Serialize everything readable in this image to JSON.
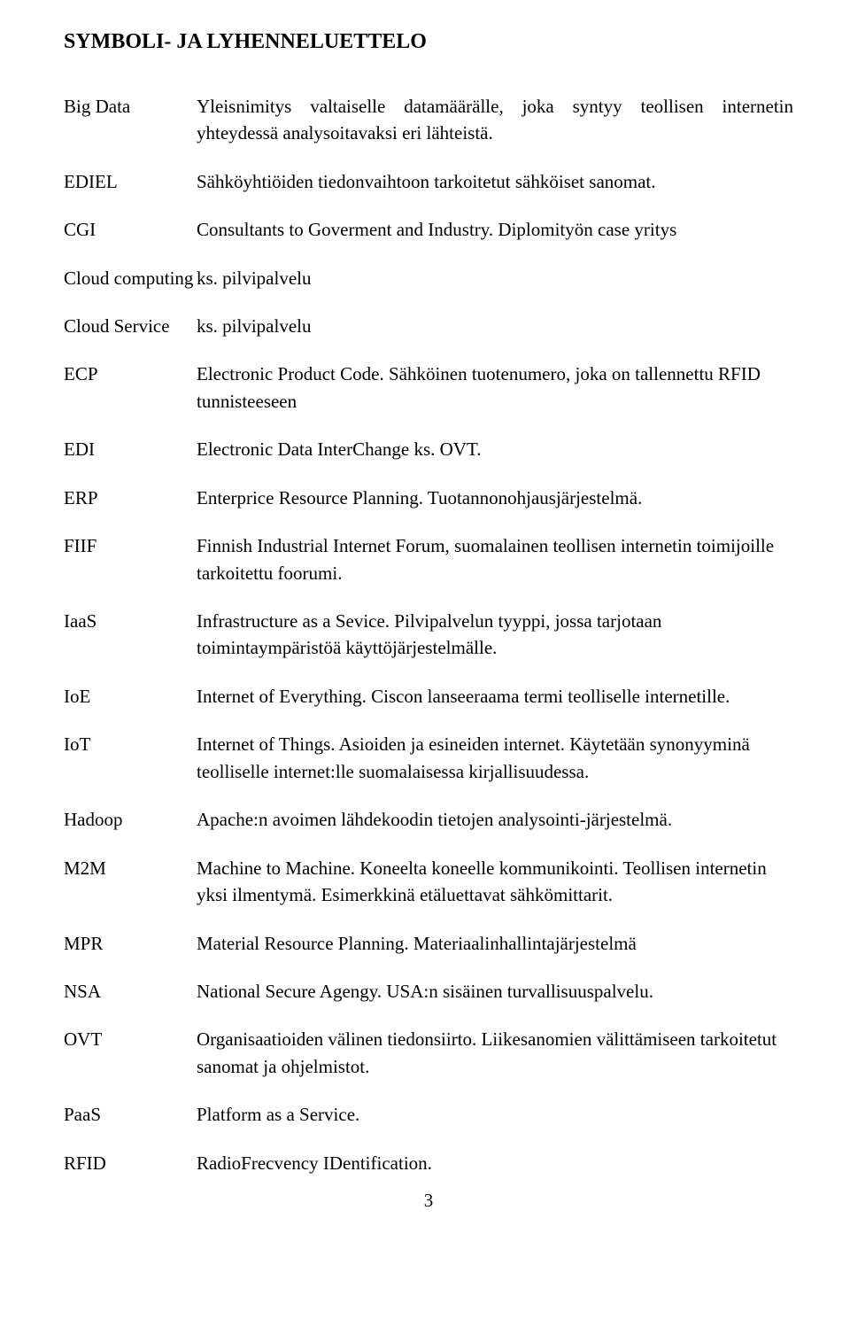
{
  "title": "SYMBOLI- JA LYHENNELUETTELO",
  "page_number": "3",
  "rows": [
    {
      "term": "Big Data",
      "def": "Yleisnimitys valtaiselle datamäärälle, joka syntyy teollisen internetin yhteydessä analysoitavaksi eri lähteistä.",
      "justify": true
    },
    {
      "term": "EDIEL",
      "def": "Sähköyhtiöiden tiedonvaihtoon tarkoitetut sähköiset sanomat."
    },
    {
      "term": "CGI",
      "def": "Consultants to Goverment and Industry. Diplomityön case yritys"
    },
    {
      "term": "Cloud computing",
      "def": "ks. pilvipalvelu"
    },
    {
      "term": "Cloud Service",
      "def": "ks. pilvipalvelu"
    },
    {
      "term": "ECP",
      "def": "Electronic Product Code. Sähköinen tuotenumero, joka on tallennettu RFID tunnisteeseen"
    },
    {
      "term": "EDI",
      "def": "Electronic Data InterChange ks. OVT."
    },
    {
      "term": "ERP",
      "def": "Enterprice Resource Planning. Tuotannonohjausjärjestelmä."
    },
    {
      "term": "FIIF",
      "def": "Finnish Industrial Internet Forum, suomalainen teollisen internetin toimijoille tarkoitettu foorumi."
    },
    {
      "term": "IaaS",
      "def": "Infrastructure as a Sevice. Pilvipalvelun tyyppi, jossa tarjotaan toimintaympäristöä käyttöjärjestelmälle."
    },
    {
      "term": "IoE",
      "def": "Internet of Everything. Ciscon lanseeraama termi teolliselle internetille."
    },
    {
      "term": "IoT",
      "def": "Internet of Things. Asioiden ja esineiden internet. Käytetään synonyyminä teolliselle internet:lle suomalaisessa kirjallisuudessa."
    },
    {
      "term": "Hadoop",
      "def": "Apache:n avoimen lähdekoodin tietojen analysointi-järjestelmä."
    },
    {
      "term": "M2M",
      "def": "Machine to Machine. Koneelta koneelle kommunikointi. Teollisen internetin yksi ilmentymä. Esimerkkinä etäluettavat sähkömittarit."
    },
    {
      "term": "MPR",
      "def": "Material Resource Planning. Materiaalinhallintajärjestelmä"
    },
    {
      "term": "NSA",
      "def": "National Secure Agengy. USA:n sisäinen turvallisuuspalvelu."
    },
    {
      "term": "OVT",
      "def": "Organisaatioiden välinen tiedonsiirto. Liikesanomien välittämiseen tarkoitetut sanomat ja ohjelmistot."
    },
    {
      "term": "PaaS",
      "def": "Platform as a Service."
    },
    {
      "term": "RFID",
      "def": "RadioFrecvency IDentification."
    }
  ]
}
